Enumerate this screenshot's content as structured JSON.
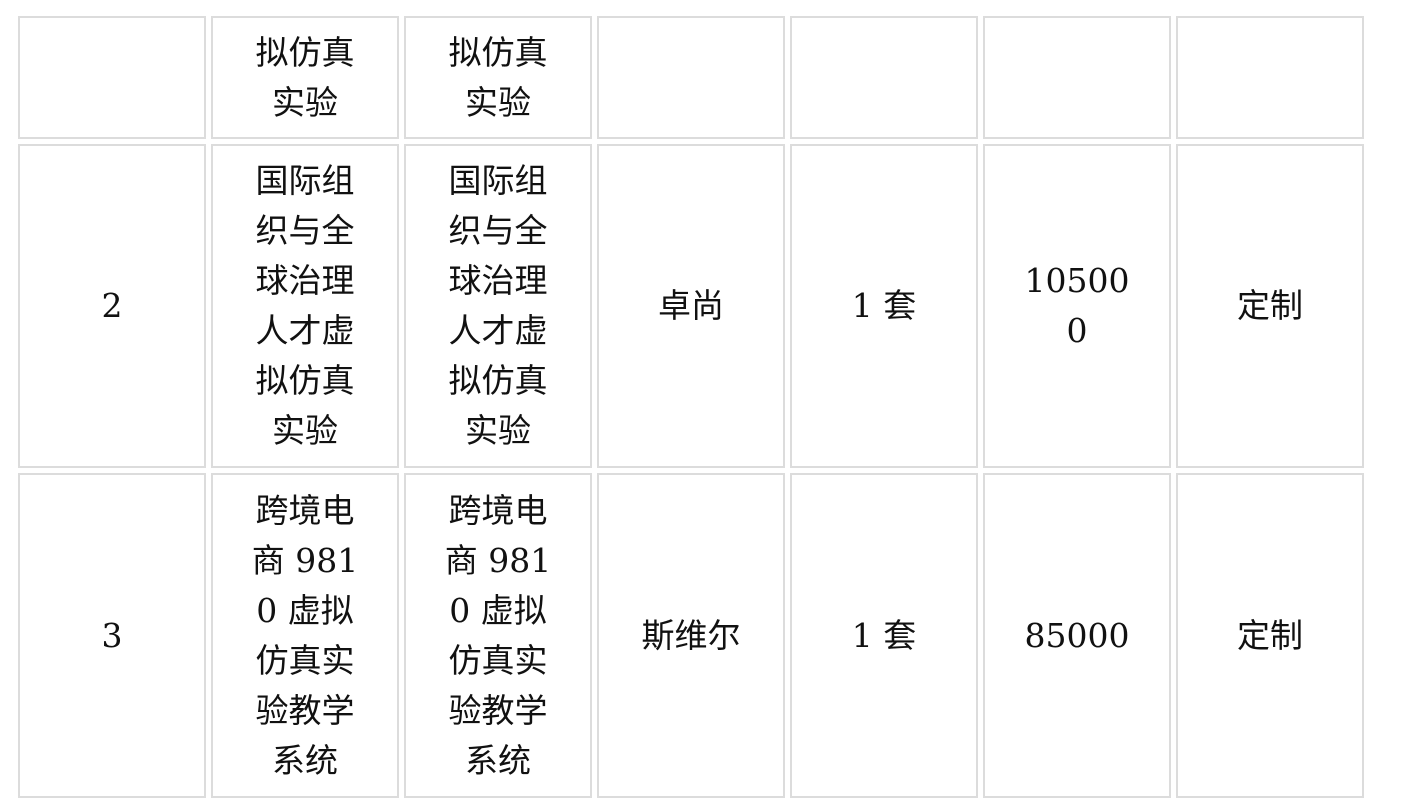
{
  "rows": [
    {
      "no": "",
      "name": "拟仿真实验",
      "spec": "拟仿真实验",
      "brand": "",
      "qty": "",
      "price": "",
      "note": ""
    },
    {
      "no": "2",
      "name": "国际组织与全球治理人才虚拟仿真实验",
      "spec": "国际组织与全球治理人才虚拟仿真实验",
      "brand": "卓尚",
      "qty": "1 套",
      "price": "105000",
      "note": "定制"
    },
    {
      "no": "3",
      "name": "跨境电商 9810 虚拟仿真实验教学系统",
      "spec": "跨境电商 9810 虚拟仿真实验教学系统",
      "brand": "斯维尔",
      "qty": "1 套",
      "price": "85000",
      "note": "定制"
    }
  ]
}
